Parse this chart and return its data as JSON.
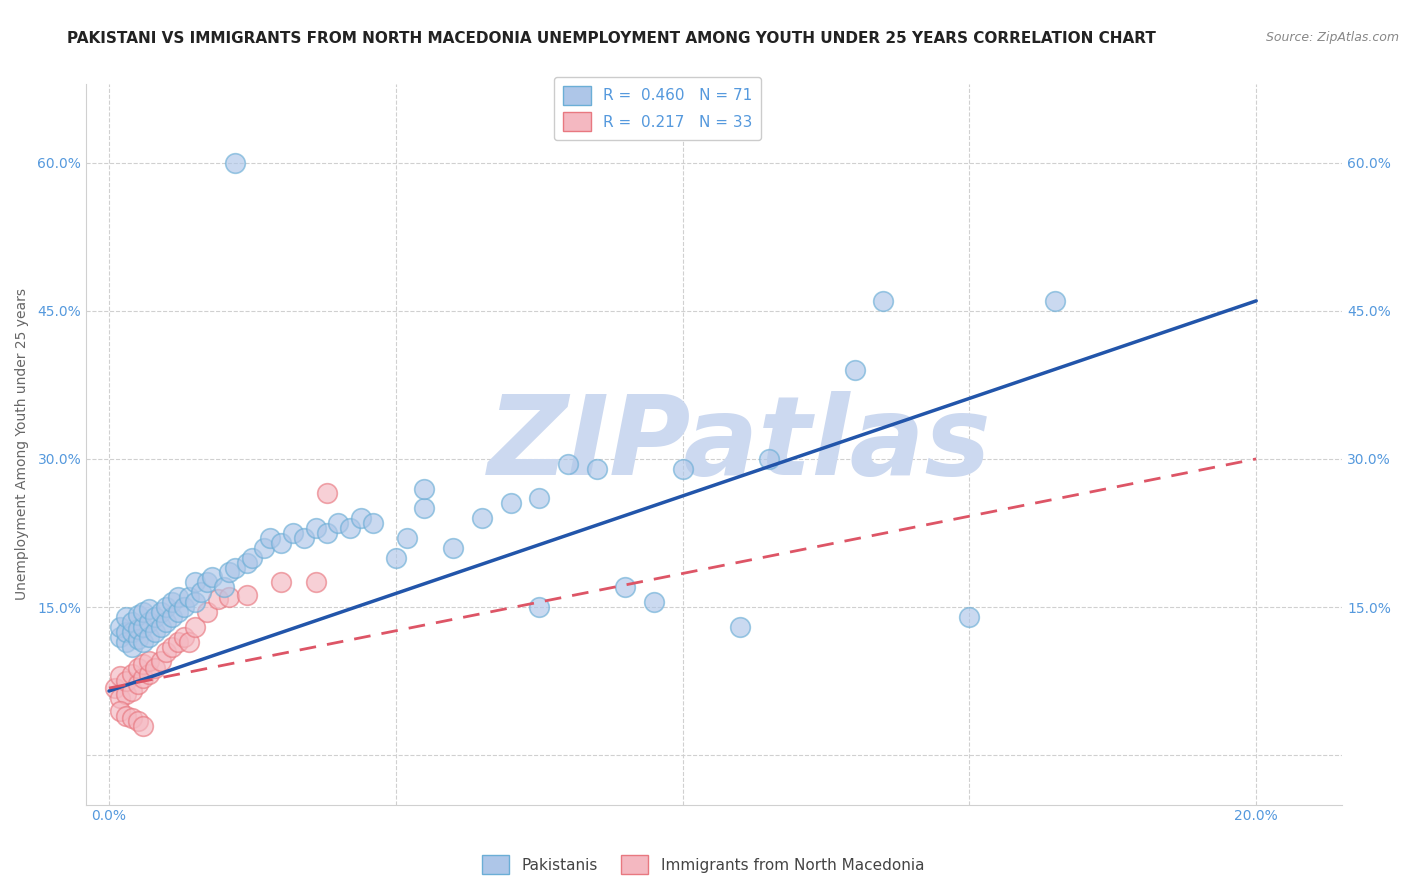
{
  "title": "PAKISTANI VS IMMIGRANTS FROM NORTH MACEDONIA UNEMPLOYMENT AMONG YOUTH UNDER 25 YEARS CORRELATION CHART",
  "source": "Source: ZipAtlas.com",
  "ylabel": "Unemployment Among Youth under 25 years",
  "x_ticks": [
    0.0,
    0.05,
    0.1,
    0.15,
    0.2
  ],
  "x_tick_labels": [
    "0.0%",
    "",
    "",
    "",
    "20.0%"
  ],
  "y_ticks": [
    0.0,
    0.15,
    0.3,
    0.45,
    0.6
  ],
  "y_tick_labels": [
    "",
    "15.0%",
    "30.0%",
    "45.0%",
    "60.0%"
  ],
  "xlim": [
    -0.004,
    0.215
  ],
  "ylim": [
    -0.05,
    0.68
  ],
  "legend_label_pakistanis": "Pakistanis",
  "legend_label_north_macedonia": "Immigrants from North Macedonia",
  "watermark": "ZIPatlas",
  "watermark_color": "#ccd9f0",
  "blue_scatter_face": "#aec6e8",
  "blue_scatter_edge": "#6baed6",
  "pink_scatter_face": "#f4b8c1",
  "pink_scatter_edge": "#e87880",
  "blue_line_color": "#2255aa",
  "pink_line_color": "#dd5566",
  "tick_color": "#5599dd",
  "grid_color": "#d0d0d0",
  "background_color": "#ffffff",
  "title_fontsize": 11,
  "source_fontsize": 9,
  "ylabel_fontsize": 10,
  "tick_fontsize": 10,
  "legend_fontsize": 11,
  "blue_trend_x": [
    0.0,
    0.2
  ],
  "blue_trend_y": [
    0.065,
    0.46
  ],
  "pink_trend_x": [
    0.0,
    0.2
  ],
  "pink_trend_y": [
    0.068,
    0.3
  ],
  "pak_x": [
    0.002,
    0.002,
    0.003,
    0.003,
    0.003,
    0.004,
    0.004,
    0.004,
    0.005,
    0.005,
    0.005,
    0.006,
    0.006,
    0.006,
    0.007,
    0.007,
    0.007,
    0.008,
    0.008,
    0.009,
    0.009,
    0.01,
    0.01,
    0.011,
    0.011,
    0.012,
    0.012,
    0.013,
    0.014,
    0.015,
    0.015,
    0.016,
    0.017,
    0.018,
    0.02,
    0.021,
    0.022,
    0.024,
    0.025,
    0.027,
    0.028,
    0.03,
    0.032,
    0.034,
    0.036,
    0.038,
    0.04,
    0.042,
    0.044,
    0.046,
    0.05,
    0.052,
    0.055,
    0.06,
    0.065,
    0.07,
    0.075,
    0.08,
    0.085,
    0.09,
    0.022,
    0.135,
    0.165,
    0.1,
    0.115,
    0.13,
    0.075,
    0.055,
    0.095,
    0.11,
    0.15
  ],
  "pak_y": [
    0.12,
    0.13,
    0.115,
    0.125,
    0.14,
    0.11,
    0.125,
    0.135,
    0.118,
    0.128,
    0.142,
    0.115,
    0.13,
    0.145,
    0.12,
    0.135,
    0.148,
    0.125,
    0.14,
    0.13,
    0.145,
    0.135,
    0.15,
    0.14,
    0.155,
    0.145,
    0.16,
    0.15,
    0.16,
    0.155,
    0.175,
    0.165,
    0.175,
    0.18,
    0.17,
    0.185,
    0.19,
    0.195,
    0.2,
    0.21,
    0.22,
    0.215,
    0.225,
    0.22,
    0.23,
    0.225,
    0.235,
    0.23,
    0.24,
    0.235,
    0.2,
    0.22,
    0.25,
    0.21,
    0.24,
    0.255,
    0.26,
    0.295,
    0.29,
    0.17,
    0.6,
    0.46,
    0.46,
    0.29,
    0.3,
    0.39,
    0.15,
    0.27,
    0.155,
    0.13,
    0.14
  ],
  "nmk_x": [
    0.001,
    0.002,
    0.002,
    0.003,
    0.003,
    0.004,
    0.004,
    0.005,
    0.005,
    0.006,
    0.006,
    0.007,
    0.007,
    0.008,
    0.009,
    0.01,
    0.011,
    0.012,
    0.013,
    0.014,
    0.015,
    0.017,
    0.019,
    0.021,
    0.024,
    0.03,
    0.036,
    0.038,
    0.002,
    0.003,
    0.004,
    0.005,
    0.006
  ],
  "nmk_y": [
    0.068,
    0.058,
    0.08,
    0.062,
    0.075,
    0.065,
    0.082,
    0.072,
    0.088,
    0.078,
    0.092,
    0.082,
    0.095,
    0.088,
    0.095,
    0.105,
    0.11,
    0.115,
    0.12,
    0.115,
    0.13,
    0.145,
    0.158,
    0.16,
    0.162,
    0.175,
    0.175,
    0.265,
    0.045,
    0.04,
    0.038,
    0.035,
    0.03
  ]
}
